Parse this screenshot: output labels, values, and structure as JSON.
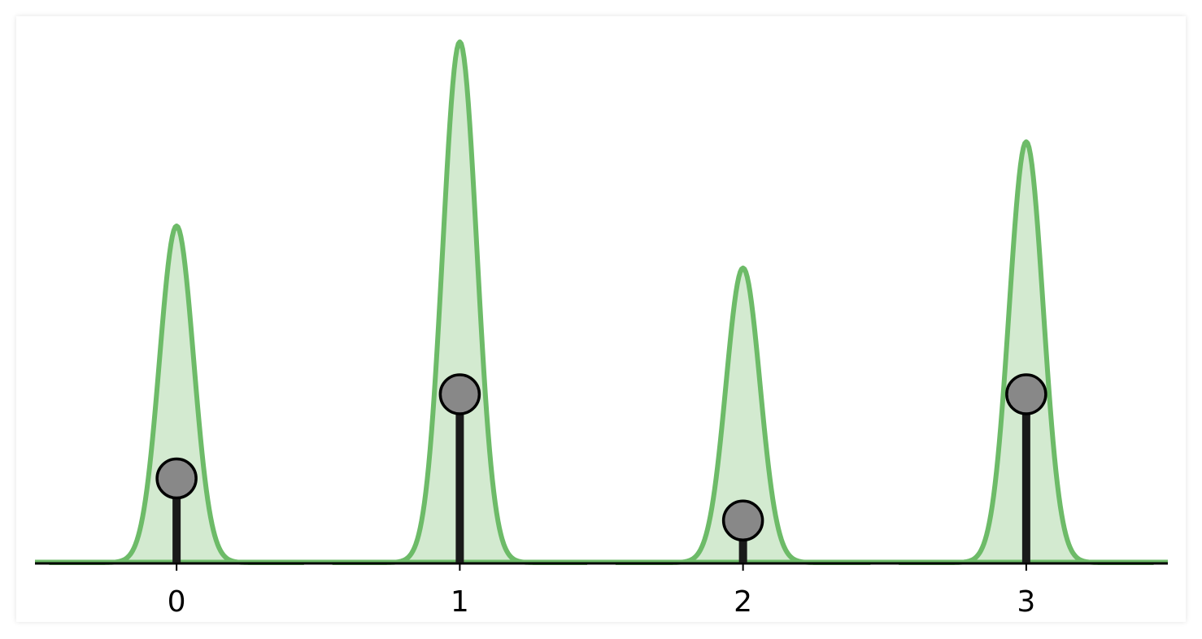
{
  "chart_data": {
    "type": "stem",
    "title": "",
    "xlabel": "",
    "ylabel": "",
    "x": [
      0,
      1,
      2,
      3
    ],
    "xticks": [
      "0",
      "1",
      "2",
      "3"
    ],
    "xlim": [
      -0.5,
      3.5
    ],
    "ylim": [
      0,
      1.0
    ],
    "stems": [
      {
        "x": 0,
        "value": 0.16
      },
      {
        "x": 1,
        "value": 0.32
      },
      {
        "x": 2,
        "value": 0.08
      },
      {
        "x": 3,
        "value": 0.32
      }
    ],
    "peaks": [
      {
        "center": 0,
        "height": 0.64,
        "width": 0.06
      },
      {
        "center": 1,
        "height": 0.99,
        "width": 0.06
      },
      {
        "center": 2,
        "height": 0.56,
        "width": 0.06
      },
      {
        "center": 3,
        "height": 0.8,
        "width": 0.06
      }
    ],
    "grid": false,
    "legend": "none",
    "colors": {
      "curve": "#6dbb68",
      "fill": "#d3ead0",
      "stem": "#1a1a1a",
      "marker": "#888888",
      "marker_edge": "#000000",
      "axis": "#000000"
    }
  }
}
